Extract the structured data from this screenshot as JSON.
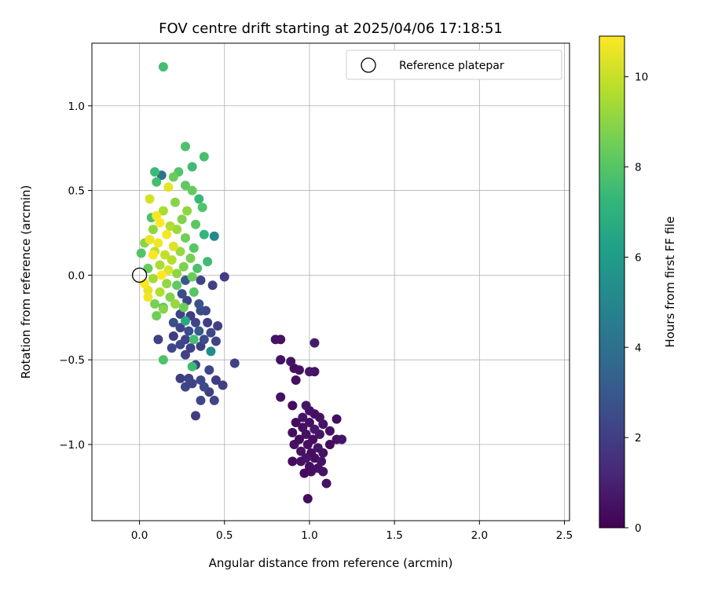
{
  "chart_data": {
    "type": "scatter",
    "title": "FOV centre drift starting at 2025/04/06 17:18:51",
    "xlabel": "Angular distance from reference (arcmin)",
    "ylabel": "Rotation from reference (arcmin)",
    "xlim": [
      -0.28,
      2.53
    ],
    "ylim": [
      -1.45,
      1.37
    ],
    "xticks": [
      0.0,
      0.5,
      1.0,
      1.5,
      2.0,
      2.5
    ],
    "xtick_labels": [
      "0.0",
      "0.5",
      "1.0",
      "1.5",
      "2.0",
      "2.5"
    ],
    "yticks": [
      1.0,
      0.5,
      0.0,
      -0.5,
      -1.0
    ],
    "ytick_labels": [
      "1.0",
      "0.5",
      "0.0",
      "−0.5",
      "−1.0"
    ],
    "grid": true,
    "legend": {
      "placement": "top-right",
      "entries": [
        "Reference platepar"
      ]
    },
    "reference_point": {
      "x": 0.0,
      "y": 0.0,
      "label": "Reference platepar",
      "marker": "open-circle"
    },
    "colorbar": {
      "label": "Hours from first FF file",
      "min": 0,
      "max": 10.9,
      "ticks": [
        0,
        2,
        4,
        6,
        8,
        10
      ],
      "tick_labels": [
        "0",
        "2",
        "4",
        "6",
        "8",
        "10"
      ],
      "colormap": [
        "#440154",
        "#482878",
        "#3e4989",
        "#31688e",
        "#26828e",
        "#1f9e89",
        "#35b779",
        "#6ece58",
        "#b5de2b",
        "#fde725"
      ]
    },
    "points": [
      {
        "x": 0.14,
        "y": 1.23,
        "h": 7.6
      },
      {
        "x": 0.27,
        "y": 0.76,
        "h": 7.8
      },
      {
        "x": 0.38,
        "y": 0.7,
        "h": 7.7
      },
      {
        "x": 0.31,
        "y": 0.64,
        "h": 7.5
      },
      {
        "x": 0.09,
        "y": 0.61,
        "h": 7.4
      },
      {
        "x": 0.23,
        "y": 0.61,
        "h": 7.9
      },
      {
        "x": 0.13,
        "y": 0.59,
        "h": 4.2
      },
      {
        "x": 0.2,
        "y": 0.58,
        "h": 8.4
      },
      {
        "x": 0.1,
        "y": 0.55,
        "h": 7.6
      },
      {
        "x": 0.27,
        "y": 0.53,
        "h": 8.2
      },
      {
        "x": 0.17,
        "y": 0.52,
        "h": 10.5
      },
      {
        "x": 0.31,
        "y": 0.5,
        "h": 8.3
      },
      {
        "x": 0.06,
        "y": 0.45,
        "h": 10.2
      },
      {
        "x": 0.35,
        "y": 0.45,
        "h": 7.3
      },
      {
        "x": 0.21,
        "y": 0.43,
        "h": 8.9
      },
      {
        "x": 0.37,
        "y": 0.4,
        "h": 7.9
      },
      {
        "x": 0.14,
        "y": 0.38,
        "h": 9.5
      },
      {
        "x": 0.28,
        "y": 0.38,
        "h": 9.1
      },
      {
        "x": 0.07,
        "y": 0.34,
        "h": 7.8
      },
      {
        "x": 0.1,
        "y": 0.35,
        "h": 10.8
      },
      {
        "x": 0.12,
        "y": 0.31,
        "h": 10.9
      },
      {
        "x": 0.25,
        "y": 0.33,
        "h": 8.8
      },
      {
        "x": 0.33,
        "y": 0.3,
        "h": 8.1
      },
      {
        "x": 0.18,
        "y": 0.29,
        "h": 9.6
      },
      {
        "x": 0.08,
        "y": 0.27,
        "h": 9.0
      },
      {
        "x": 0.22,
        "y": 0.27,
        "h": 9.3
      },
      {
        "x": 0.38,
        "y": 0.24,
        "h": 7.2
      },
      {
        "x": 0.44,
        "y": 0.23,
        "h": 5.2
      },
      {
        "x": 0.16,
        "y": 0.24,
        "h": 10.8
      },
      {
        "x": 0.06,
        "y": 0.21,
        "h": 10.6
      },
      {
        "x": 0.27,
        "y": 0.22,
        "h": 8.5
      },
      {
        "x": 0.11,
        "y": 0.19,
        "h": 10.7
      },
      {
        "x": 0.03,
        "y": 0.19,
        "h": 8.9
      },
      {
        "x": 0.2,
        "y": 0.17,
        "h": 10.4
      },
      {
        "x": 0.32,
        "y": 0.16,
        "h": 8.0
      },
      {
        "x": 0.09,
        "y": 0.14,
        "h": 9.8
      },
      {
        "x": 0.24,
        "y": 0.14,
        "h": 9.2
      },
      {
        "x": 0.01,
        "y": 0.13,
        "h": 7.9
      },
      {
        "x": 0.15,
        "y": 0.12,
        "h": 9.9
      },
      {
        "x": 0.08,
        "y": 0.12,
        "h": 10.9
      },
      {
        "x": 0.3,
        "y": 0.1,
        "h": 8.6
      },
      {
        "x": 0.19,
        "y": 0.09,
        "h": 9.7
      },
      {
        "x": 0.4,
        "y": 0.08,
        "h": 7.5
      },
      {
        "x": 0.12,
        "y": 0.06,
        "h": 9.5
      },
      {
        "x": 0.26,
        "y": 0.05,
        "h": 8.7
      },
      {
        "x": 0.05,
        "y": 0.04,
        "h": 8.3
      },
      {
        "x": 0.34,
        "y": 0.04,
        "h": 7.8
      },
      {
        "x": 0.17,
        "y": 0.03,
        "h": 10.3
      },
      {
        "x": 0.22,
        "y": 0.01,
        "h": 9.0
      },
      {
        "x": 0.13,
        "y": 0.0,
        "h": 10.9
      },
      {
        "x": 0.31,
        "y": -0.01,
        "h": 8.4
      },
      {
        "x": 0.08,
        "y": -0.02,
        "h": 9.4
      },
      {
        "x": 0.27,
        "y": -0.03,
        "h": 3.0
      },
      {
        "x": 0.36,
        "y": -0.03,
        "h": 2.2
      },
      {
        "x": 0.5,
        "y": -0.01,
        "h": 2.0
      },
      {
        "x": 0.03,
        "y": -0.05,
        "h": 10.9
      },
      {
        "x": 0.16,
        "y": -0.05,
        "h": 9.1
      },
      {
        "x": 0.22,
        "y": -0.06,
        "h": 8.2
      },
      {
        "x": 0.43,
        "y": -0.06,
        "h": 2.1
      },
      {
        "x": 0.05,
        "y": -0.09,
        "h": 10.5
      },
      {
        "x": 0.12,
        "y": -0.1,
        "h": 9.6
      },
      {
        "x": 0.25,
        "y": -0.11,
        "h": 2.6
      },
      {
        "x": 0.32,
        "y": -0.1,
        "h": 8.0
      },
      {
        "x": 0.18,
        "y": -0.13,
        "h": 8.8
      },
      {
        "x": 0.05,
        "y": -0.13,
        "h": 10.7
      },
      {
        "x": 0.28,
        "y": -0.15,
        "h": 2.3
      },
      {
        "x": 0.09,
        "y": -0.17,
        "h": 8.6
      },
      {
        "x": 0.14,
        "y": -0.19,
        "h": 8.0
      },
      {
        "x": 0.21,
        "y": -0.17,
        "h": 9.2
      },
      {
        "x": 0.35,
        "y": -0.17,
        "h": 2.8
      },
      {
        "x": 0.26,
        "y": -0.19,
        "h": 8.4
      },
      {
        "x": 0.14,
        "y": -0.2,
        "h": 8.9
      },
      {
        "x": 0.24,
        "y": -0.23,
        "h": 2.2
      },
      {
        "x": 0.1,
        "y": -0.24,
        "h": 8.5
      },
      {
        "x": 0.3,
        "y": -0.24,
        "h": 2.0
      },
      {
        "x": 0.36,
        "y": -0.21,
        "h": 2.5
      },
      {
        "x": 0.39,
        "y": -0.21,
        "h": 2.4
      },
      {
        "x": 0.2,
        "y": -0.28,
        "h": 2.7
      },
      {
        "x": 0.27,
        "y": -0.27,
        "h": 6.6
      },
      {
        "x": 0.33,
        "y": -0.28,
        "h": 2.2
      },
      {
        "x": 0.4,
        "y": -0.28,
        "h": 2.0
      },
      {
        "x": 0.46,
        "y": -0.3,
        "h": 2.1
      },
      {
        "x": 0.24,
        "y": -0.31,
        "h": 2.3
      },
      {
        "x": 0.29,
        "y": -0.33,
        "h": 2.6
      },
      {
        "x": 0.35,
        "y": -0.33,
        "h": 3.1
      },
      {
        "x": 0.42,
        "y": -0.34,
        "h": 2.4
      },
      {
        "x": 0.2,
        "y": -0.36,
        "h": 2.0
      },
      {
        "x": 0.27,
        "y": -0.38,
        "h": 2.2
      },
      {
        "x": 0.11,
        "y": -0.38,
        "h": 2.1
      },
      {
        "x": 0.32,
        "y": -0.38,
        "h": 7.6
      },
      {
        "x": 0.38,
        "y": -0.38,
        "h": 2.5
      },
      {
        "x": 0.45,
        "y": -0.39,
        "h": 2.2
      },
      {
        "x": 0.24,
        "y": -0.41,
        "h": 2.3
      },
      {
        "x": 0.19,
        "y": -0.43,
        "h": 2.4
      },
      {
        "x": 0.3,
        "y": -0.43,
        "h": 2.1
      },
      {
        "x": 0.36,
        "y": -0.42,
        "h": 2.0
      },
      {
        "x": 0.42,
        "y": -0.45,
        "h": 5.3
      },
      {
        "x": 0.27,
        "y": -0.47,
        "h": 2.2
      },
      {
        "x": 0.14,
        "y": -0.5,
        "h": 7.8
      },
      {
        "x": 0.33,
        "y": -0.53,
        "h": 2.4
      },
      {
        "x": 0.31,
        "y": -0.54,
        "h": 7.5
      },
      {
        "x": 0.41,
        "y": -0.56,
        "h": 2.3
      },
      {
        "x": 0.56,
        "y": -0.52,
        "h": 2.1
      },
      {
        "x": 0.24,
        "y": -0.61,
        "h": 2.0
      },
      {
        "x": 0.29,
        "y": -0.61,
        "h": 2.2
      },
      {
        "x": 0.36,
        "y": -0.62,
        "h": 2.4
      },
      {
        "x": 0.45,
        "y": -0.62,
        "h": 2.0
      },
      {
        "x": 0.49,
        "y": -0.65,
        "h": 2.1
      },
      {
        "x": 0.27,
        "y": -0.66,
        "h": 2.3
      },
      {
        "x": 0.31,
        "y": -0.64,
        "h": 2.2
      },
      {
        "x": 0.38,
        "y": -0.66,
        "h": 2.5
      },
      {
        "x": 0.41,
        "y": -0.69,
        "h": 2.1
      },
      {
        "x": 0.36,
        "y": -0.74,
        "h": 2.3
      },
      {
        "x": 0.44,
        "y": -0.74,
        "h": 2.2
      },
      {
        "x": 0.33,
        "y": -0.83,
        "h": 2.0
      },
      {
        "x": 0.8,
        "y": -0.38,
        "h": 0.6
      },
      {
        "x": 0.83,
        "y": -0.38,
        "h": 0.5
      },
      {
        "x": 1.03,
        "y": -0.4,
        "h": 0.8
      },
      {
        "x": 0.83,
        "y": -0.5,
        "h": 0.5
      },
      {
        "x": 0.89,
        "y": -0.51,
        "h": 0.6
      },
      {
        "x": 0.91,
        "y": -0.55,
        "h": 0.4
      },
      {
        "x": 0.94,
        "y": -0.56,
        "h": 0.5
      },
      {
        "x": 1.0,
        "y": -0.57,
        "h": 0.7
      },
      {
        "x": 1.03,
        "y": -0.57,
        "h": 0.6
      },
      {
        "x": 0.92,
        "y": -0.62,
        "h": 0.4
      },
      {
        "x": 0.83,
        "y": -0.72,
        "h": 0.5
      },
      {
        "x": 0.9,
        "y": -0.77,
        "h": 0.3
      },
      {
        "x": 0.98,
        "y": -0.77,
        "h": 0.6
      },
      {
        "x": 1.0,
        "y": -0.8,
        "h": 0.5
      },
      {
        "x": 1.03,
        "y": -0.82,
        "h": 0.4
      },
      {
        "x": 0.96,
        "y": -0.84,
        "h": 0.6
      },
      {
        "x": 1.06,
        "y": -0.84,
        "h": 0.5
      },
      {
        "x": 1.16,
        "y": -0.85,
        "h": 0.4
      },
      {
        "x": 0.92,
        "y": -0.87,
        "h": 0.3
      },
      {
        "x": 1.0,
        "y": -0.87,
        "h": 0.5
      },
      {
        "x": 1.08,
        "y": -0.88,
        "h": 0.6
      },
      {
        "x": 0.96,
        "y": -0.9,
        "h": 0.4
      },
      {
        "x": 1.03,
        "y": -0.91,
        "h": 0.7
      },
      {
        "x": 1.12,
        "y": -0.92,
        "h": 0.5
      },
      {
        "x": 0.9,
        "y": -0.93,
        "h": 0.4
      },
      {
        "x": 0.98,
        "y": -0.94,
        "h": 0.5
      },
      {
        "x": 1.06,
        "y": -0.94,
        "h": 0.6
      },
      {
        "x": 0.94,
        "y": -0.97,
        "h": 0.3
      },
      {
        "x": 1.02,
        "y": -0.97,
        "h": 0.4
      },
      {
        "x": 1.16,
        "y": -0.97,
        "h": 0.5
      },
      {
        "x": 1.19,
        "y": -0.97,
        "h": 0.6
      },
      {
        "x": 0.91,
        "y": -1.0,
        "h": 0.5
      },
      {
        "x": 0.99,
        "y": -1.0,
        "h": 0.4
      },
      {
        "x": 1.05,
        "y": -1.02,
        "h": 0.6
      },
      {
        "x": 1.12,
        "y": -1.0,
        "h": 0.3
      },
      {
        "x": 0.95,
        "y": -1.04,
        "h": 0.5
      },
      {
        "x": 1.01,
        "y": -1.05,
        "h": 0.4
      },
      {
        "x": 1.08,
        "y": -1.05,
        "h": 0.5
      },
      {
        "x": 0.98,
        "y": -1.08,
        "h": 0.6
      },
      {
        "x": 1.03,
        "y": -1.08,
        "h": 0.4
      },
      {
        "x": 0.9,
        "y": -1.1,
        "h": 0.3
      },
      {
        "x": 0.95,
        "y": -1.1,
        "h": 0.5
      },
      {
        "x": 1.07,
        "y": -1.1,
        "h": 0.6
      },
      {
        "x": 1.0,
        "y": -1.13,
        "h": 0.4
      },
      {
        "x": 1.05,
        "y": -1.14,
        "h": 0.5
      },
      {
        "x": 0.97,
        "y": -1.17,
        "h": 0.3
      },
      {
        "x": 1.01,
        "y": -1.16,
        "h": 0.4
      },
      {
        "x": 1.08,
        "y": -1.16,
        "h": 0.6
      },
      {
        "x": 1.1,
        "y": -1.23,
        "h": 0.5
      },
      {
        "x": 0.99,
        "y": -1.32,
        "h": 0.4
      }
    ]
  }
}
